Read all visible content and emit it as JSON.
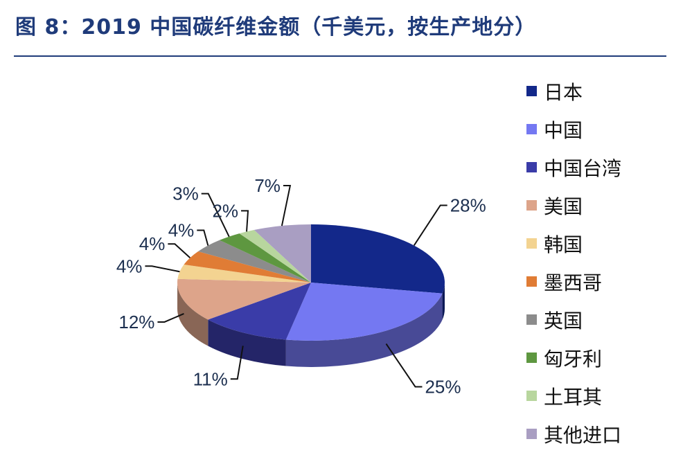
{
  "title": "图 8：2019 中国碳纤维金额（千美元，按生产地分）",
  "chart_data": {
    "type": "pie",
    "title": "图 8：2019 中国碳纤维金额（千美元，按生产地分）",
    "unit": "%",
    "legend_position": "right",
    "slices": [
      {
        "name": "日本",
        "value": 28,
        "label": "28%",
        "color": "#13288a"
      },
      {
        "name": "中国",
        "value": 25,
        "label": "25%",
        "color": "#7478f2"
      },
      {
        "name": "中国台湾",
        "value": 11,
        "label": "11%",
        "color": "#3a3ca8"
      },
      {
        "name": "美国",
        "value": 12,
        "label": "12%",
        "color": "#dda48a"
      },
      {
        "name": "韩国",
        "value": 4,
        "label": "4%",
        "color": "#f3d391"
      },
      {
        "name": "墨西哥",
        "value": 4,
        "label": "4%",
        "color": "#e07c35"
      },
      {
        "name": "英国",
        "value": 4,
        "label": "4%",
        "color": "#8c8c8c"
      },
      {
        "name": "匈牙利",
        "value": 3,
        "label": "3%",
        "color": "#5e9740"
      },
      {
        "name": "土耳其",
        "value": 2,
        "label": "2%",
        "color": "#b8d69e"
      },
      {
        "name": "其他进口",
        "value": 7,
        "label": "7%",
        "color": "#a99ec2"
      }
    ]
  }
}
